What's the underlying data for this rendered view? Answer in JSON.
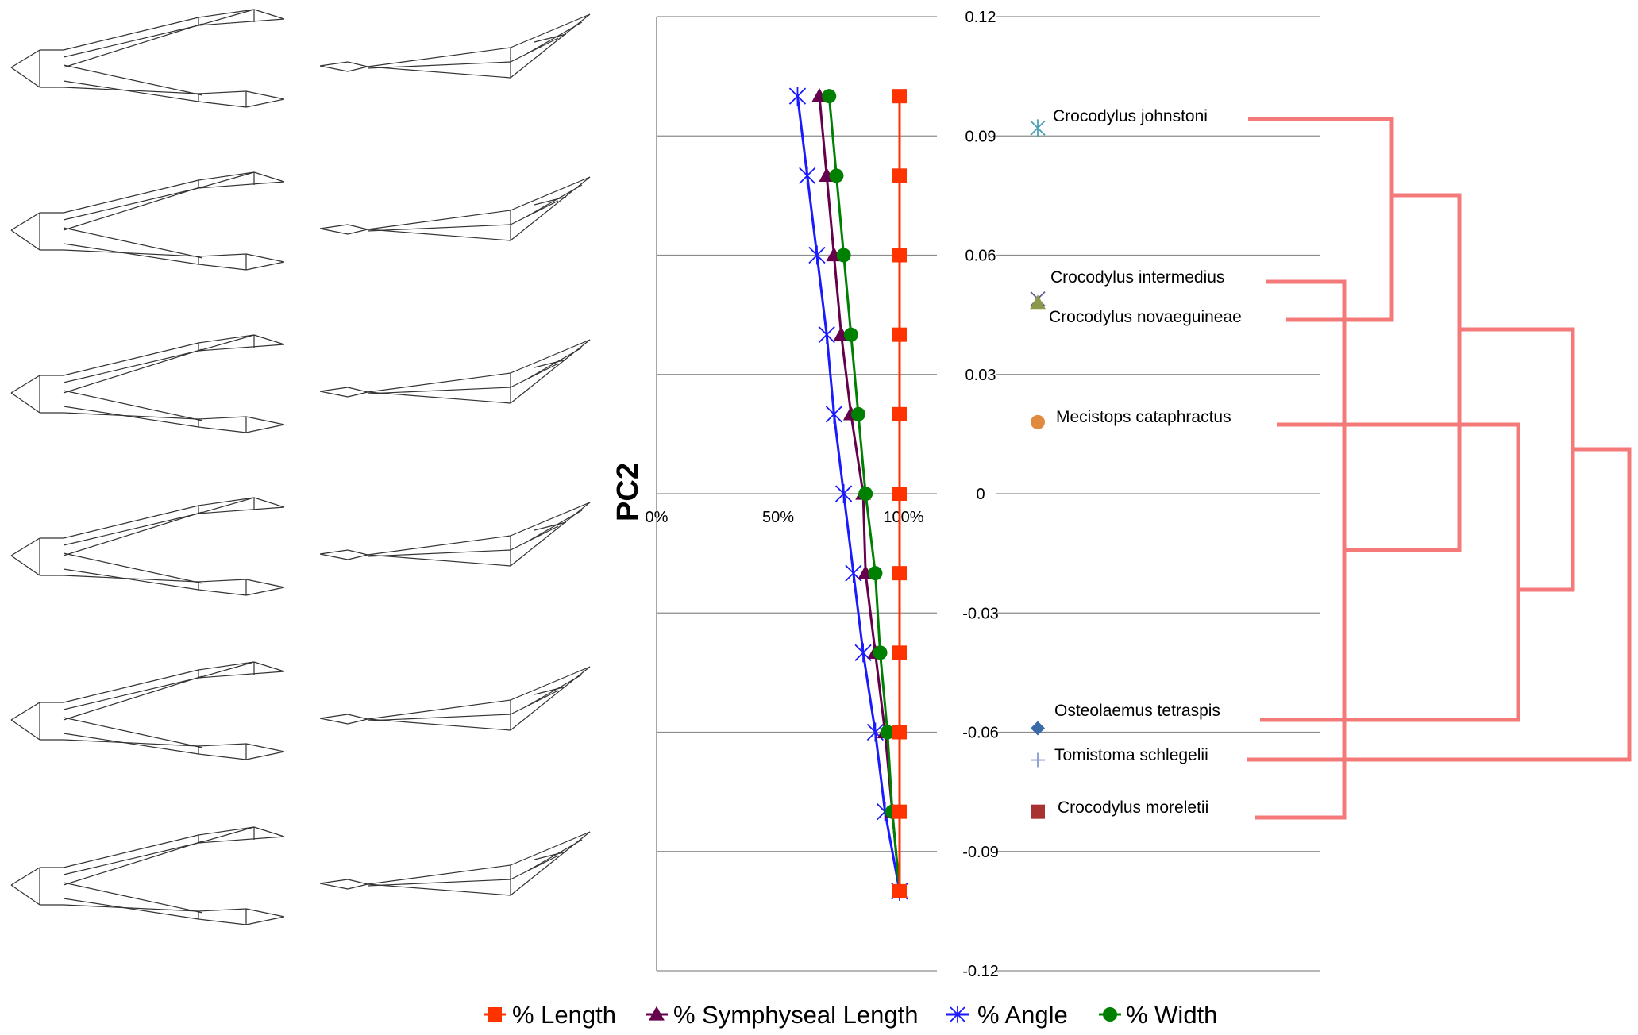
{
  "chart_data": {
    "type": "line",
    "ylabel": "PC2",
    "y_ticks": [
      "0.12",
      "0.09",
      "0.06",
      "0.03",
      "0",
      "-0.03",
      "-0.06",
      "-0.09",
      "-0.12"
    ],
    "y_tick_values": [
      0.12,
      0.09,
      0.06,
      0.03,
      0,
      -0.03,
      -0.06,
      -0.09,
      -0.12
    ],
    "ylim": [
      -0.12,
      0.12
    ],
    "x_ticks": [
      "0%",
      "50%",
      "100%"
    ],
    "x_tick_values": [
      0,
      50,
      100
    ],
    "xlim": [
      0,
      100
    ],
    "grid": true,
    "legend_position": "bottom",
    "y": [
      0.1,
      0.08,
      0.06,
      0.04,
      0.02,
      0,
      -0.02,
      -0.04,
      -0.06,
      -0.08,
      -0.1
    ],
    "series": [
      {
        "name": "% Length",
        "marker": "square",
        "color": "#ff3300",
        "values": [
          100,
          100,
          100,
          100,
          100,
          100,
          100,
          100,
          100,
          100,
          100
        ]
      },
      {
        "name": "% Symphyseal Length",
        "marker": "triangle",
        "color": "#66004d",
        "values": [
          67,
          70,
          73,
          76,
          80,
          85,
          86,
          90,
          94,
          97,
          100
        ]
      },
      {
        "name": "% Angle",
        "marker": "asterisk",
        "color": "#1a1aff",
        "values": [
          58,
          62,
          66,
          70,
          73,
          77,
          81,
          85,
          90,
          94,
          100
        ]
      },
      {
        "name": "% Width",
        "marker": "circle",
        "color": "#008000",
        "values": [
          71,
          74,
          77,
          80,
          83,
          86,
          90,
          92,
          95,
          97,
          100
        ]
      }
    ],
    "species": [
      {
        "name": "Crocodylus johnstoni",
        "pc2": 0.092,
        "marker": "asterisk",
        "color": "#4aa0b5"
      },
      {
        "name": "Crocodylus intermedius",
        "pc2": 0.049,
        "marker": "x",
        "color": "#6b5b95"
      },
      {
        "name": "Crocodylus novaeguineae",
        "pc2": 0.048,
        "marker": "triangle",
        "color": "#8a9a4a"
      },
      {
        "name": "Mecistops cataphractus",
        "pc2": 0.018,
        "marker": "circle",
        "color": "#e08a40"
      },
      {
        "name": "Osteolaemus tetraspis",
        "pc2": -0.059,
        "marker": "diamond",
        "color": "#3b6aa8"
      },
      {
        "name": "Tomistoma schlegelii",
        "pc2": -0.067,
        "marker": "plus",
        "color": "#8899cc"
      },
      {
        "name": "Crocodylus moreletii",
        "pc2": -0.08,
        "marker": "square",
        "color": "#a83232"
      }
    ],
    "tree_color": "#f47a7a"
  }
}
